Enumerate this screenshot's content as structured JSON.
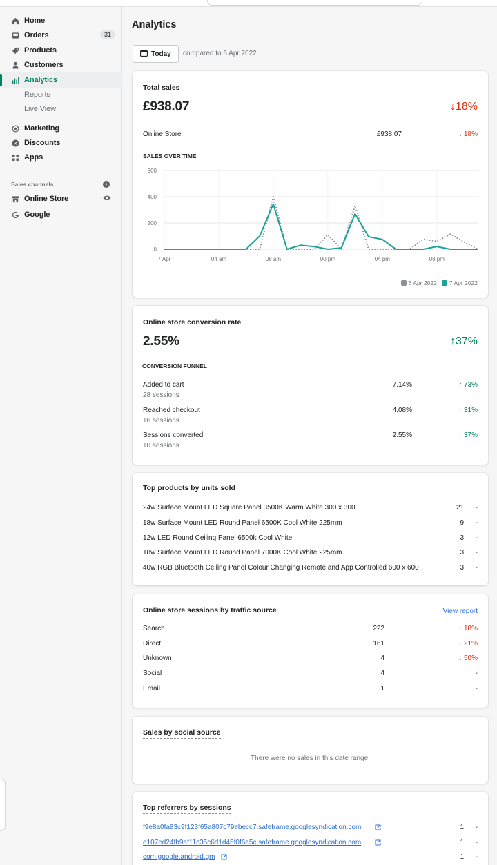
{
  "nav": {
    "items": [
      {
        "label": "Home",
        "icon": "home-icon"
      },
      {
        "label": "Orders",
        "icon": "inbox-icon",
        "badge": "31"
      },
      {
        "label": "Products",
        "icon": "tag-icon"
      },
      {
        "label": "Customers",
        "icon": "person-icon"
      },
      {
        "label": "Analytics",
        "icon": "bar-chart-icon",
        "active": true
      }
    ],
    "sub": [
      "Reports",
      "Live View"
    ],
    "more": [
      {
        "label": "Marketing",
        "icon": "target-icon"
      },
      {
        "label": "Discounts",
        "icon": "discount-icon"
      },
      {
        "label": "Apps",
        "icon": "apps-icon"
      }
    ],
    "channels_title": "Sales channels",
    "channels": [
      {
        "label": "Online Store",
        "icon": "store-icon"
      },
      {
        "label": "Google",
        "icon": "google-icon"
      }
    ]
  },
  "page": {
    "title": "Analytics",
    "date_button": "Today",
    "compare": "compared to 6 Apr 2022"
  },
  "total_sales": {
    "title": "Total sales",
    "value": "£938.07",
    "change": "18%",
    "change_arrow": "↓",
    "row": {
      "label": "Online Store",
      "value": "£938.07",
      "change": "↓ 18%"
    },
    "chart_title": "SALES OVER TIME"
  },
  "chart_data": {
    "type": "line",
    "x": [
      "12 am",
      "1 am",
      "2 am",
      "3 am",
      "4 am",
      "5 am",
      "6 am",
      "7 am",
      "8 am",
      "9 am",
      "10 am",
      "11 am",
      "12 pm",
      "1 pm",
      "2 pm",
      "3 pm",
      "4 pm",
      "5 pm",
      "6 pm",
      "7 pm",
      "8 pm",
      "9 pm",
      "10 pm",
      "11 pm"
    ],
    "x_tick_labels": [
      "7 Apr",
      "04 am",
      "08 am",
      "00 pm",
      "04 pm",
      "08 pm"
    ],
    "y_ticks": [
      0,
      200,
      400,
      600
    ],
    "ylim": [
      0,
      600
    ],
    "series": [
      {
        "name": "6 Apr 2022",
        "color": "#8c9196",
        "style": "dotted",
        "values": [
          0,
          0,
          0,
          0,
          0,
          0,
          0,
          0,
          400,
          0,
          0,
          0,
          110,
          0,
          330,
          0,
          0,
          0,
          0,
          75,
          60,
          115,
          55,
          0
        ]
      },
      {
        "name": "7 Apr 2022",
        "color": "#1aa39a",
        "style": "solid",
        "values": [
          0,
          0,
          0,
          0,
          0,
          0,
          0,
          100,
          345,
          0,
          30,
          20,
          0,
          10,
          270,
          95,
          75,
          0,
          0,
          0,
          20,
          0,
          0,
          0
        ]
      }
    ]
  },
  "conversion": {
    "title": "Online store conversion rate",
    "value": "2.55%",
    "change": "37%",
    "change_arrow": "↑",
    "funnel_title": "CONVERSION FUNNEL",
    "rows": [
      {
        "label": "Added to cart",
        "sessions": "28 sessions",
        "rate": "7.14%",
        "change": "↑ 73%"
      },
      {
        "label": "Reached checkout",
        "sessions": "16 sessions",
        "rate": "4.08%",
        "change": "↑ 31%"
      },
      {
        "label": "Sessions converted",
        "sessions": "10 sessions",
        "rate": "2.55%",
        "change": "↑ 37%"
      }
    ]
  },
  "top_products": {
    "title": "Top products by units sold",
    "rows": [
      {
        "name": "24w Surface Mount LED Square Panel 3500K Warm White 300 x 300",
        "units": "21",
        "change": "-"
      },
      {
        "name": "18w Surface Mount LED Round Panel 6500K Cool White 225mm",
        "units": "9",
        "change": "-"
      },
      {
        "name": "12w LED Round Ceiling Panel 6500k Cool White",
        "units": "3",
        "change": "-"
      },
      {
        "name": "18w Surface Mount LED Round Panel 7000K Cool White 225mm",
        "units": "3",
        "change": "-"
      },
      {
        "name": "40w RGB Bluetooth Ceiling Panel Colour Changing Remote and App Controlled 600 x 600",
        "units": "3",
        "change": "-"
      }
    ]
  },
  "traffic": {
    "title": "Online store sessions by traffic source",
    "link": "View report",
    "rows": [
      {
        "source": "Search",
        "sessions": "222",
        "change": "↓ 18%",
        "dir": "down"
      },
      {
        "source": "Direct",
        "sessions": "161",
        "change": "↓ 21%",
        "dir": "down"
      },
      {
        "source": "Unknown",
        "sessions": "4",
        "change": "↓ 50%",
        "dir": "down"
      },
      {
        "source": "Social",
        "sessions": "4",
        "change": "-",
        "dir": ""
      },
      {
        "source": "Email",
        "sessions": "1",
        "change": "-",
        "dir": ""
      }
    ]
  },
  "social": {
    "title": "Sales by social source",
    "empty": "There were no sales in this date range."
  },
  "referrers": {
    "title": "Top referrers by sessions",
    "rows": [
      {
        "url": "f9e8a0fa83c9f123f65a807c79ebecc7.safeframe.googlesyndication.com",
        "sessions": "1",
        "change": "-"
      },
      {
        "url": "e107ed24fb9af11c35c6d1d45f0f6a5c.safeframe.googlesyndication.com",
        "sessions": "1",
        "change": "-"
      },
      {
        "url": "com.google.android.gm",
        "sessions": "1",
        "change": "-"
      }
    ]
  }
}
